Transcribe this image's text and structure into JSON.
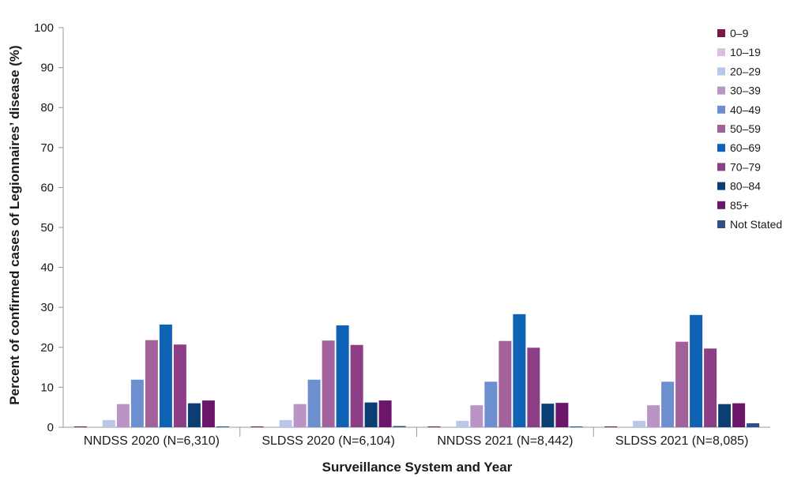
{
  "chart_data": {
    "type": "bar",
    "title": "",
    "xlabel": "Surveillance System and Year",
    "ylabel": "Percent of confirmed cases of  Legionnaires’ disease (%)",
    "ylim": [
      0,
      100
    ],
    "yticks": [
      0,
      10,
      20,
      30,
      40,
      50,
      60,
      70,
      80,
      90,
      100
    ],
    "grid": false,
    "legend_position": "right",
    "categories": [
      "NNDSS 2020 (N=6,310)",
      "SLDSS 2020 (N=6,104)",
      "NNDSS 2021 (N=8,442)",
      "SLDSS 2021 (N=8,085)"
    ],
    "series": [
      {
        "name": "0–9",
        "color": "#7a1845",
        "values": [
          0.2,
          0.2,
          0.2,
          0.2
        ]
      },
      {
        "name": "10–19",
        "color": "#d9bfe0",
        "values": [
          0.1,
          0.1,
          0.1,
          0.1
        ]
      },
      {
        "name": "20–29",
        "color": "#b7c8ea",
        "values": [
          1.8,
          1.8,
          1.6,
          1.6
        ]
      },
      {
        "name": "30–39",
        "color": "#b994c4",
        "values": [
          5.8,
          5.8,
          5.5,
          5.5
        ]
      },
      {
        "name": "40–49",
        "color": "#6d8fcf",
        "values": [
          11.9,
          11.9,
          11.4,
          11.4
        ]
      },
      {
        "name": "50–59",
        "color": "#a2619b",
        "values": [
          21.8,
          21.7,
          21.6,
          21.4
        ]
      },
      {
        "name": "60–69",
        "color": "#0f62b4",
        "values": [
          25.7,
          25.5,
          28.3,
          28.1
        ]
      },
      {
        "name": "70–79",
        "color": "#8c3f86",
        "values": [
          20.7,
          20.6,
          19.9,
          19.7
        ]
      },
      {
        "name": "80–84",
        "color": "#0b3e73",
        "values": [
          6.0,
          6.2,
          5.9,
          5.8
        ]
      },
      {
        "name": "85+",
        "color": "#6b1668",
        "values": [
          6.7,
          6.7,
          6.1,
          6.0
        ]
      },
      {
        "name": "Not Stated",
        "color": "#2e4f8a",
        "values": [
          0.1,
          0.3,
          0.1,
          1.0
        ]
      }
    ]
  }
}
